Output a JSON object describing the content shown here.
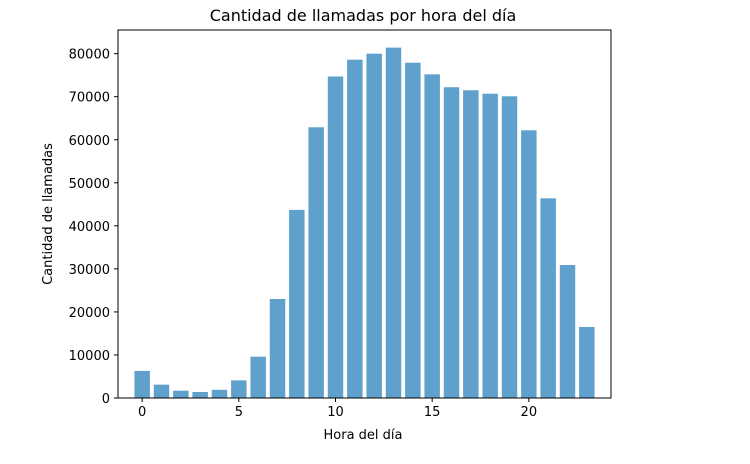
{
  "chart_data": {
    "type": "bar",
    "title": "Cantidad de llamadas por hora del día",
    "xlabel": "Hora del día",
    "ylabel": "Cantidad de llamadas",
    "x": [
      0,
      1,
      2,
      3,
      4,
      5,
      6,
      7,
      8,
      9,
      10,
      11,
      12,
      13,
      14,
      15,
      16,
      17,
      18,
      19,
      20,
      21,
      22,
      23
    ],
    "values": [
      6300,
      3100,
      1700,
      1400,
      1900,
      4100,
      9600,
      23000,
      43700,
      62900,
      74700,
      78600,
      80000,
      81400,
      77900,
      75200,
      72200,
      71500,
      70700,
      70100,
      62200,
      46400,
      30900,
      16500
    ],
    "xlim": [
      -1.25,
      24.25
    ],
    "ylim": [
      0,
      85500
    ],
    "xticks": [
      0,
      5,
      10,
      15,
      20
    ],
    "yticks": [
      0,
      10000,
      20000,
      30000,
      40000,
      50000,
      60000,
      70000,
      80000
    ],
    "bar_color": "#5fa0cc",
    "grid": false,
    "legend": "none"
  }
}
